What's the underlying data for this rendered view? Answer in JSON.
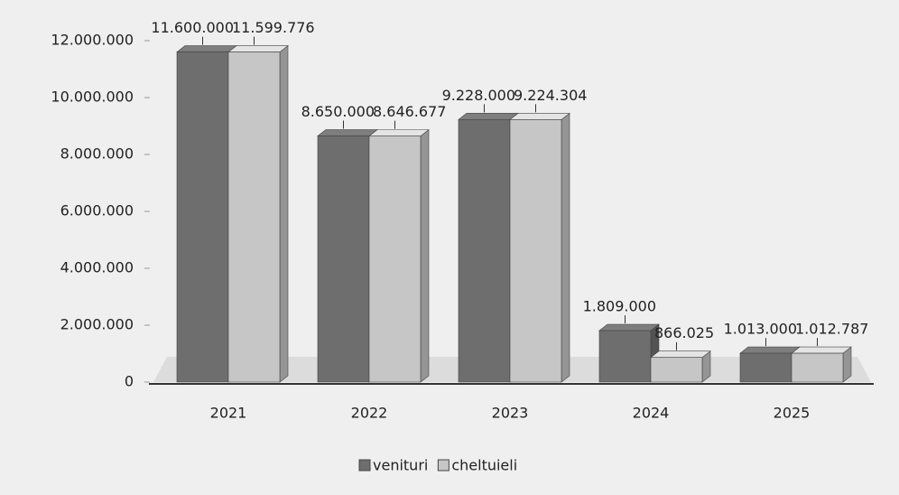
{
  "chart_data": {
    "type": "bar3d",
    "categories": [
      "2021",
      "2022",
      "2023",
      "2024",
      "2025"
    ],
    "series": [
      {
        "name": "venituri",
        "color": "#6e6e6e",
        "values": [
          11600000,
          8650000,
          9228000,
          1809000,
          1013000
        ],
        "value_labels": [
          "11.600.000",
          "8.650.000",
          "9.228.000",
          "1.809.000",
          "1.013.000"
        ]
      },
      {
        "name": "cheltuieli",
        "color": "#c6c6c6",
        "values": [
          11599776,
          8646677,
          9224304,
          866025,
          1012787
        ],
        "value_labels": [
          "11.599.776",
          "8.646.677",
          "9.224.304",
          "866.025",
          "1.012.787"
        ]
      }
    ],
    "ylim": [
      0,
      12000000
    ],
    "yticks": [
      {
        "value": 0,
        "label": "0"
      },
      {
        "value": 2000000,
        "label": "2.000.000"
      },
      {
        "value": 4000000,
        "label": "4.000.000"
      },
      {
        "value": 6000000,
        "label": "6.000.000"
      },
      {
        "value": 8000000,
        "label": "8.000.000"
      },
      {
        "value": 10000000,
        "label": "10.000.000"
      },
      {
        "value": 12000000,
        "label": "12.000.000"
      }
    ],
    "legend": "bottom"
  }
}
